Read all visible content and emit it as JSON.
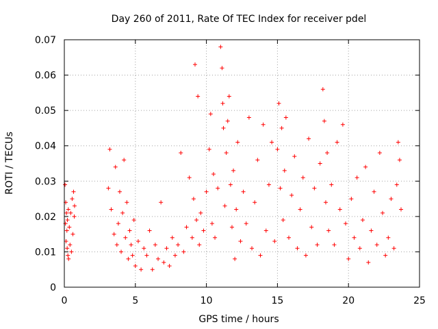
{
  "chart_data": {
    "type": "scatter",
    "title": "Day 260 of 2011, Rate Of TEC Index for receiver pdel",
    "xlabel": "GPS time / hours",
    "ylabel": "ROTI / TECUs",
    "xlim": [
      0,
      25
    ],
    "ylim": [
      0,
      0.07
    ],
    "xticks": [
      0,
      5,
      10,
      15,
      20,
      25
    ],
    "xtick_labels": [
      "0",
      "5",
      "10",
      "15",
      "20",
      "25"
    ],
    "yticks": [
      0,
      0.01,
      0.02,
      0.03,
      0.04,
      0.05,
      0.06,
      0.07
    ],
    "ytick_labels": [
      "0",
      "0.01",
      "0.02",
      "0.03",
      "0.04",
      "0.05",
      "0.06",
      "0.07"
    ],
    "grid": true,
    "marker": "+",
    "color": "#ff0000",
    "series": [
      {
        "x": [
          0.05,
          0.08,
          0.1,
          0.12,
          0.15,
          0.18,
          0.2,
          0.22,
          0.25,
          0.28,
          0.3,
          0.35,
          0.4,
          0.45,
          0.5,
          0.55,
          0.6,
          0.65,
          0.7,
          0.72,
          3.1,
          3.2,
          3.3,
          3.5,
          3.6,
          3.7,
          3.8,
          3.9,
          4.0,
          4.1,
          4.2,
          4.3,
          4.4,
          4.5,
          4.6,
          4.7,
          4.8,
          4.9,
          5.0,
          5.2,
          5.4,
          5.6,
          5.8,
          6.0,
          6.2,
          6.4,
          6.6,
          6.8,
          7.0,
          7.2,
          7.4,
          7.6,
          7.8,
          8.0,
          8.2,
          8.4,
          8.6,
          8.8,
          9.0,
          9.1,
          9.2,
          9.3,
          9.4,
          9.5,
          9.6,
          9.8,
          10.0,
          10.2,
          10.3,
          10.4,
          10.5,
          10.6,
          10.8,
          11.0,
          11.1,
          11.15,
          11.2,
          11.3,
          11.4,
          11.5,
          11.6,
          11.7,
          11.8,
          11.9,
          12.0,
          12.1,
          12.2,
          12.4,
          12.6,
          12.8,
          13.0,
          13.2,
          13.4,
          13.6,
          13.8,
          14.0,
          14.2,
          14.4,
          14.6,
          14.8,
          15.0,
          15.1,
          15.2,
          15.3,
          15.4,
          15.5,
          15.6,
          15.8,
          16.0,
          16.2,
          16.4,
          16.6,
          16.8,
          17.0,
          17.2,
          17.4,
          17.6,
          17.8,
          18.0,
          18.2,
          18.3,
          18.4,
          18.5,
          18.6,
          18.8,
          19.0,
          19.2,
          19.4,
          19.6,
          19.8,
          20.0,
          20.2,
          20.4,
          20.6,
          20.8,
          21.0,
          21.2,
          21.4,
          21.6,
          21.8,
          22.0,
          22.2,
          22.4,
          22.6,
          22.8,
          23.0,
          23.2,
          23.4,
          23.5,
          23.6,
          23.7
        ],
        "y": [
          0.029,
          0.018,
          0.024,
          0.013,
          0.021,
          0.016,
          0.011,
          0.019,
          0.009,
          0.022,
          0.008,
          0.017,
          0.012,
          0.021,
          0.01,
          0.025,
          0.015,
          0.027,
          0.02,
          0.023,
          0.028,
          0.039,
          0.022,
          0.015,
          0.034,
          0.012,
          0.018,
          0.027,
          0.01,
          0.021,
          0.036,
          0.014,
          0.024,
          0.008,
          0.016,
          0.012,
          0.009,
          0.019,
          0.006,
          0.013,
          0.005,
          0.011,
          0.009,
          0.016,
          0.005,
          0.012,
          0.008,
          0.024,
          0.007,
          0.011,
          0.006,
          0.014,
          0.009,
          0.012,
          0.038,
          0.01,
          0.017,
          0.031,
          0.014,
          0.025,
          0.063,
          0.019,
          0.054,
          0.012,
          0.021,
          0.016,
          0.027,
          0.039,
          0.049,
          0.018,
          0.032,
          0.014,
          0.028,
          0.068,
          0.062,
          0.052,
          0.045,
          0.023,
          0.038,
          0.047,
          0.054,
          0.029,
          0.017,
          0.033,
          0.008,
          0.022,
          0.041,
          0.013,
          0.027,
          0.018,
          0.048,
          0.011,
          0.024,
          0.036,
          0.009,
          0.046,
          0.016,
          0.029,
          0.041,
          0.013,
          0.039,
          0.052,
          0.028,
          0.045,
          0.019,
          0.033,
          0.048,
          0.014,
          0.026,
          0.037,
          0.011,
          0.022,
          0.031,
          0.009,
          0.042,
          0.017,
          0.028,
          0.012,
          0.035,
          0.056,
          0.047,
          0.024,
          0.038,
          0.016,
          0.029,
          0.012,
          0.041,
          0.022,
          0.046,
          0.018,
          0.008,
          0.025,
          0.014,
          0.031,
          0.011,
          0.019,
          0.034,
          0.007,
          0.016,
          0.027,
          0.012,
          0.038,
          0.021,
          0.009,
          0.014,
          0.025,
          0.011,
          0.029,
          0.041,
          0.036,
          0.022
        ]
      }
    ]
  }
}
